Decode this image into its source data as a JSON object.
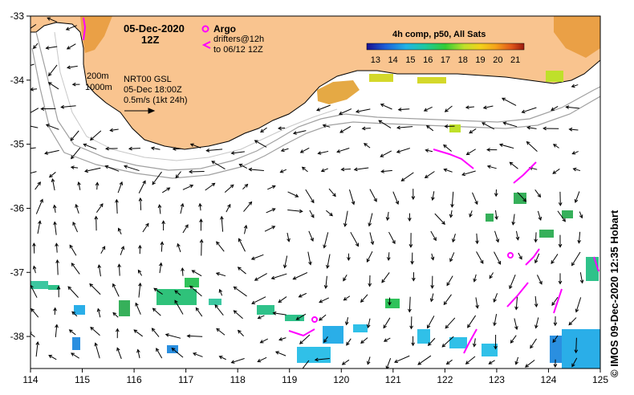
{
  "map": {
    "date": "05-Dec-2020",
    "time": "12Z",
    "argo_label": "Argo",
    "drifters_line1": "drifters@12h",
    "drifters_line2": "to 06/12 12Z",
    "isobath_200": "200m",
    "isobath_1000": "1000m",
    "product_line1": "NRT00 GSL",
    "product_line2": "05-Dec 18:00Z",
    "scale_label": "0.5m/s (1kt 24h)",
    "colorbar": {
      "title": "4h comp, p50, All Sats",
      "ticks": [
        "13",
        "14",
        "15",
        "16",
        "17",
        "18",
        "19",
        "20",
        "21"
      ],
      "min": 12.5,
      "max": 21.5
    },
    "credit": "© IMOS 09-Dec-2020 12:35 Hobart",
    "x_ticks": [
      "114",
      "115",
      "116",
      "117",
      "118",
      "119",
      "120",
      "121",
      "122",
      "123",
      "124",
      "125"
    ],
    "y_ticks": [
      "-33",
      "-34",
      "-35",
      "-36",
      "-37",
      "-38"
    ],
    "lon_range": [
      114,
      125
    ],
    "lat_range": [
      -33,
      -38.5
    ],
    "colors": {
      "land": "#f9c48f",
      "coast": "#000000",
      "isobath": "#a0a0a0",
      "argo": "#ff00ff",
      "drifter": "#ff00ff",
      "arrow": "#000000"
    }
  }
}
